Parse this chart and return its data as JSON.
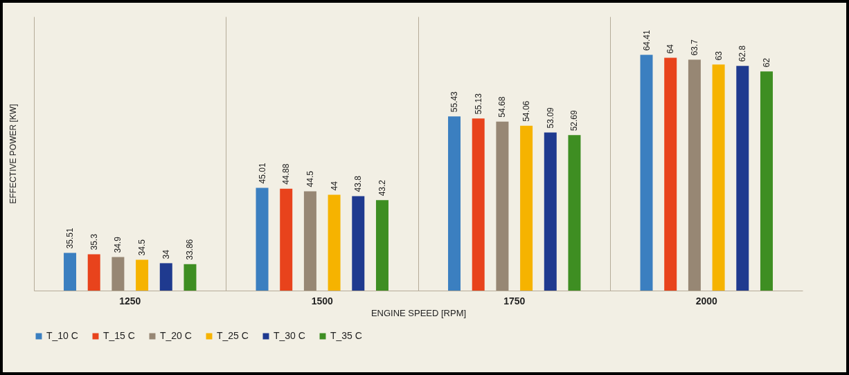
{
  "chart_data": {
    "type": "bar",
    "xlabel": "ENGINE SPEED [RPM]",
    "ylabel": "EFFECTIVE POWER [KW]",
    "categories": [
      "1250",
      "1500",
      "1750",
      "2000"
    ],
    "series": [
      {
        "name": "T_10 C",
        "color": "#3b7fc0",
        "values": [
          35.51,
          45.01,
          55.43,
          64.41
        ]
      },
      {
        "name": "T_15 C",
        "color": "#e8431c",
        "values": [
          35.3,
          44.88,
          55.13,
          64
        ]
      },
      {
        "name": "T_20 C",
        "color": "#978774",
        "values": [
          34.9,
          44.5,
          54.68,
          63.7
        ]
      },
      {
        "name": "T_25 C",
        "color": "#f6b300",
        "values": [
          34.5,
          44,
          54.06,
          63
        ]
      },
      {
        "name": "T_30 C",
        "color": "#1f3a8f",
        "values": [
          34,
          43.8,
          53.09,
          62.8
        ]
      },
      {
        "name": "T_35 C",
        "color": "#3e8e22",
        "values": [
          33.86,
          43.2,
          52.69,
          62
        ]
      }
    ],
    "ylim": [
      30,
      70
    ],
    "data_labels": true,
    "grid": "x",
    "legend": "bottom"
  }
}
